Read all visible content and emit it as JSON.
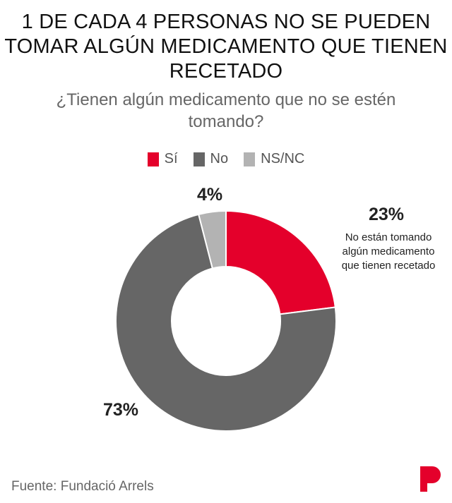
{
  "header": {
    "title": "1 DE CADA 4 PERSONAS NO SE PUEDEN TOMAR ALGÚN MEDICAMENTO QUE TIENEN RECETADO",
    "subtitle": "¿Tienen algún medicamento que no se estén tomando?"
  },
  "chart_data": {
    "type": "pie",
    "variant": "donut",
    "title": "1 DE CADA 4 PERSONAS NO SE PUEDEN TOMAR ALGÚN MEDICAMENTO QUE TIENEN RECETADO",
    "subtitle": "¿Tienen algún medicamento que no se estén tomando?",
    "legend_position": "top",
    "slices": [
      {
        "label": "Sí",
        "value": 23,
        "display": "23%",
        "color": "#e4002b",
        "annotation": "No están tomando algún medicamento que tienen recetado"
      },
      {
        "label": "No",
        "value": 73,
        "display": "73%",
        "color": "#666666"
      },
      {
        "label": "NS/NC",
        "value": 4,
        "display": "4%",
        "color": "#b3b3b3"
      }
    ]
  },
  "footer": {
    "source": "Fuente: Fundació Arrels",
    "logo_letter": "P",
    "logo_color": "#e4002b"
  }
}
